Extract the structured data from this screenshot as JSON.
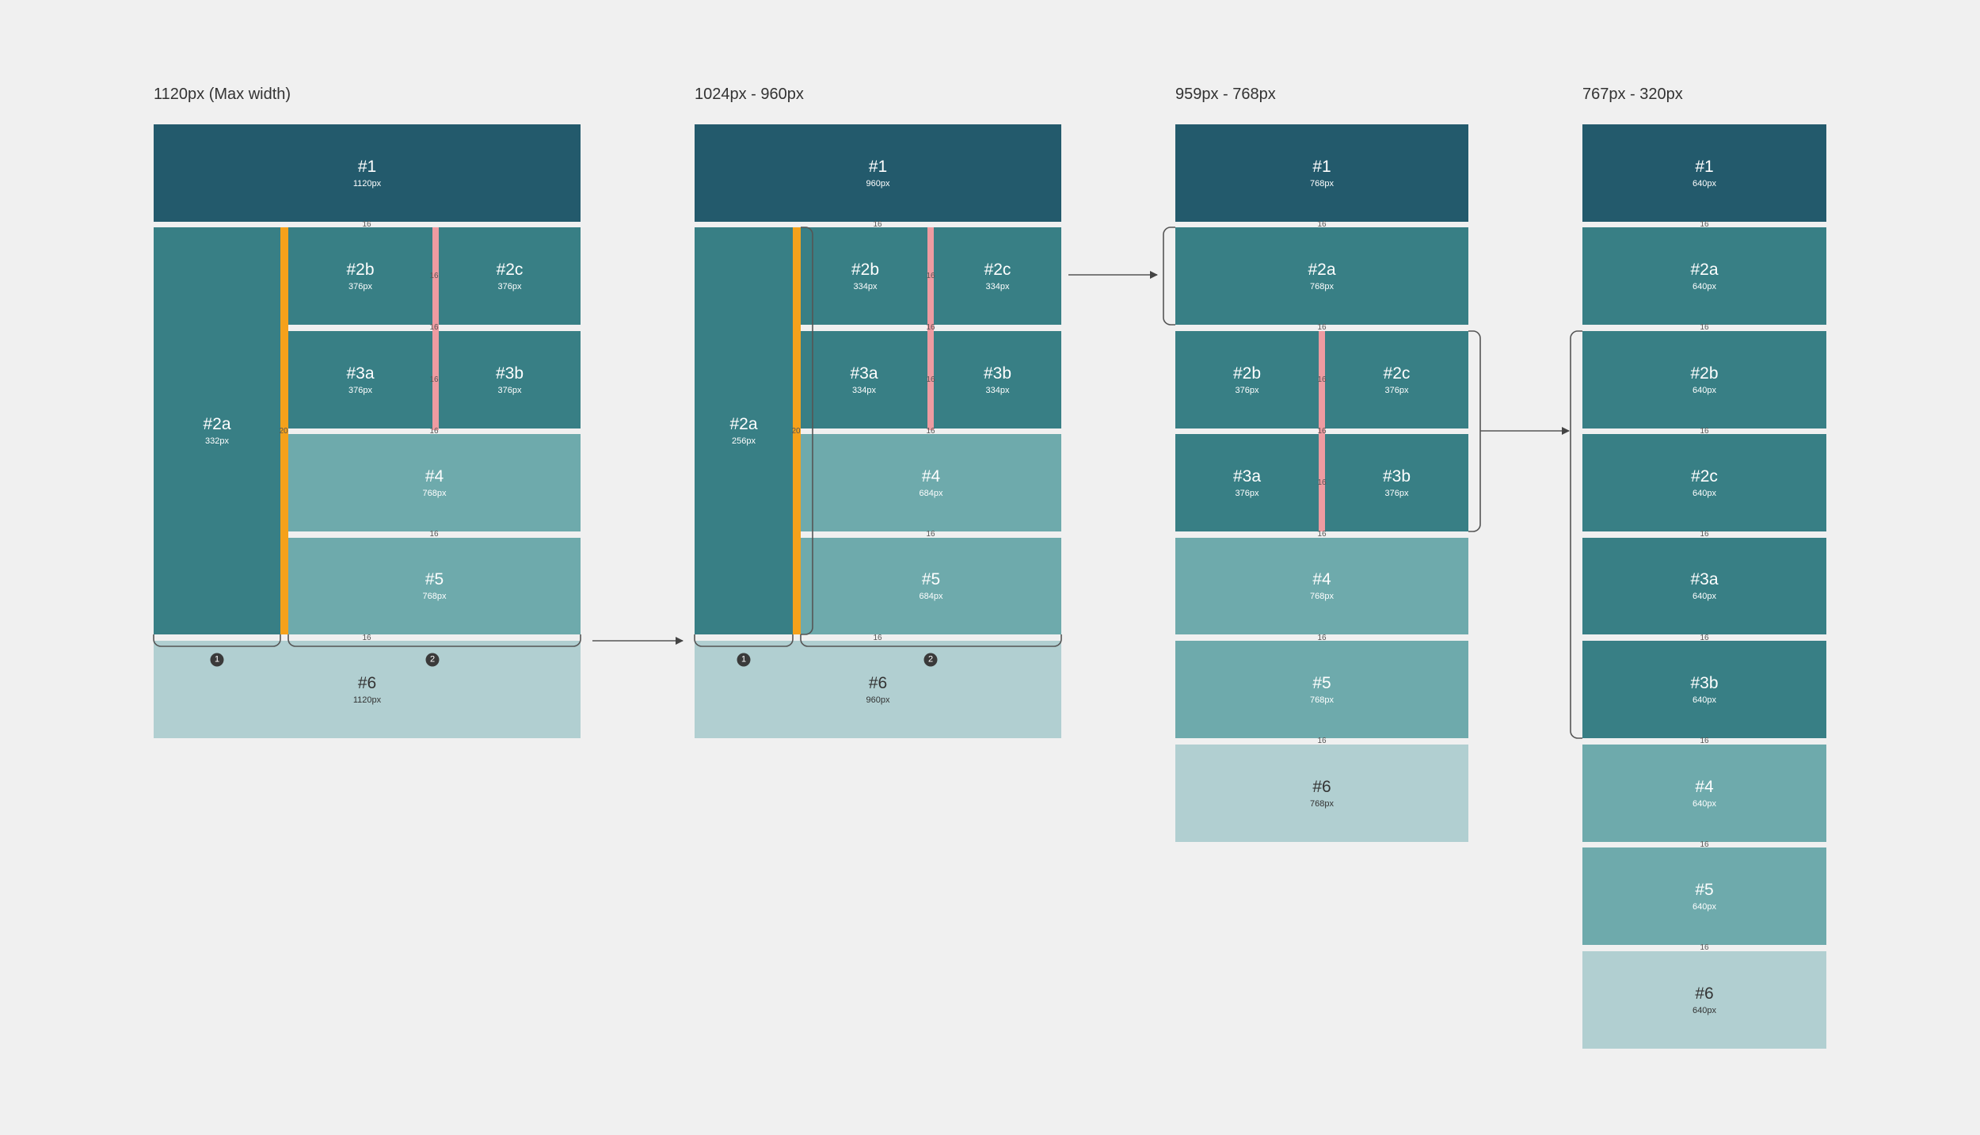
{
  "columns": [
    {
      "title": "1120px (Max width)"
    },
    {
      "title": "1024px - 960px"
    },
    {
      "title": "959px - 768px"
    },
    {
      "title": "767px - 320px"
    }
  ],
  "blocks": {
    "c1": {
      "b1": {
        "name": "#1",
        "size": "1120px"
      },
      "b2a": {
        "name": "#2a",
        "size": "332px"
      },
      "b2b": {
        "name": "#2b",
        "size": "376px"
      },
      "b2c": {
        "name": "#2c",
        "size": "376px"
      },
      "b3a": {
        "name": "#3a",
        "size": "376px"
      },
      "b3b": {
        "name": "#3b",
        "size": "376px"
      },
      "b4": {
        "name": "#4",
        "size": "768px"
      },
      "b5": {
        "name": "#5",
        "size": "768px"
      },
      "b6": {
        "name": "#6",
        "size": "1120px"
      }
    },
    "c2": {
      "b1": {
        "name": "#1",
        "size": "960px"
      },
      "b2a": {
        "name": "#2a",
        "size": "256px"
      },
      "b2b": {
        "name": "#2b",
        "size": "334px"
      },
      "b2c": {
        "name": "#2c",
        "size": "334px"
      },
      "b3a": {
        "name": "#3a",
        "size": "334px"
      },
      "b3b": {
        "name": "#3b",
        "size": "334px"
      },
      "b4": {
        "name": "#4",
        "size": "684px"
      },
      "b5": {
        "name": "#5",
        "size": "684px"
      },
      "b6": {
        "name": "#6",
        "size": "960px"
      }
    },
    "c3": {
      "b1": {
        "name": "#1",
        "size": "768px"
      },
      "b2a": {
        "name": "#2a",
        "size": "768px"
      },
      "b2b": {
        "name": "#2b",
        "size": "376px"
      },
      "b2c": {
        "name": "#2c",
        "size": "376px"
      },
      "b3a": {
        "name": "#3a",
        "size": "376px"
      },
      "b3b": {
        "name": "#3b",
        "size": "376px"
      },
      "b4": {
        "name": "#4",
        "size": "768px"
      },
      "b5": {
        "name": "#5",
        "size": "768px"
      },
      "b6": {
        "name": "#6",
        "size": "768px"
      }
    },
    "c4": {
      "b1": {
        "name": "#1",
        "size": "640px"
      },
      "b2a": {
        "name": "#2a",
        "size": "640px"
      },
      "b2b": {
        "name": "#2b",
        "size": "640px"
      },
      "b2c": {
        "name": "#2c",
        "size": "640px"
      },
      "b3a": {
        "name": "#3a",
        "size": "640px"
      },
      "b3b": {
        "name": "#3b",
        "size": "640px"
      },
      "b4": {
        "name": "#4",
        "size": "640px"
      },
      "b5": {
        "name": "#5",
        "size": "640px"
      },
      "b6": {
        "name": "#6",
        "size": "640px"
      }
    }
  },
  "gap_labels": {
    "gap16": "16",
    "gap20": "20"
  },
  "badges": {
    "one": "1",
    "two": "2"
  },
  "colors": {
    "dark": "#235a6c",
    "mid": "#387f85",
    "light": "#6eaaac",
    "pale": "#b1cfd1",
    "orange": "#f5a11b",
    "pink": "#ee9ba1"
  }
}
